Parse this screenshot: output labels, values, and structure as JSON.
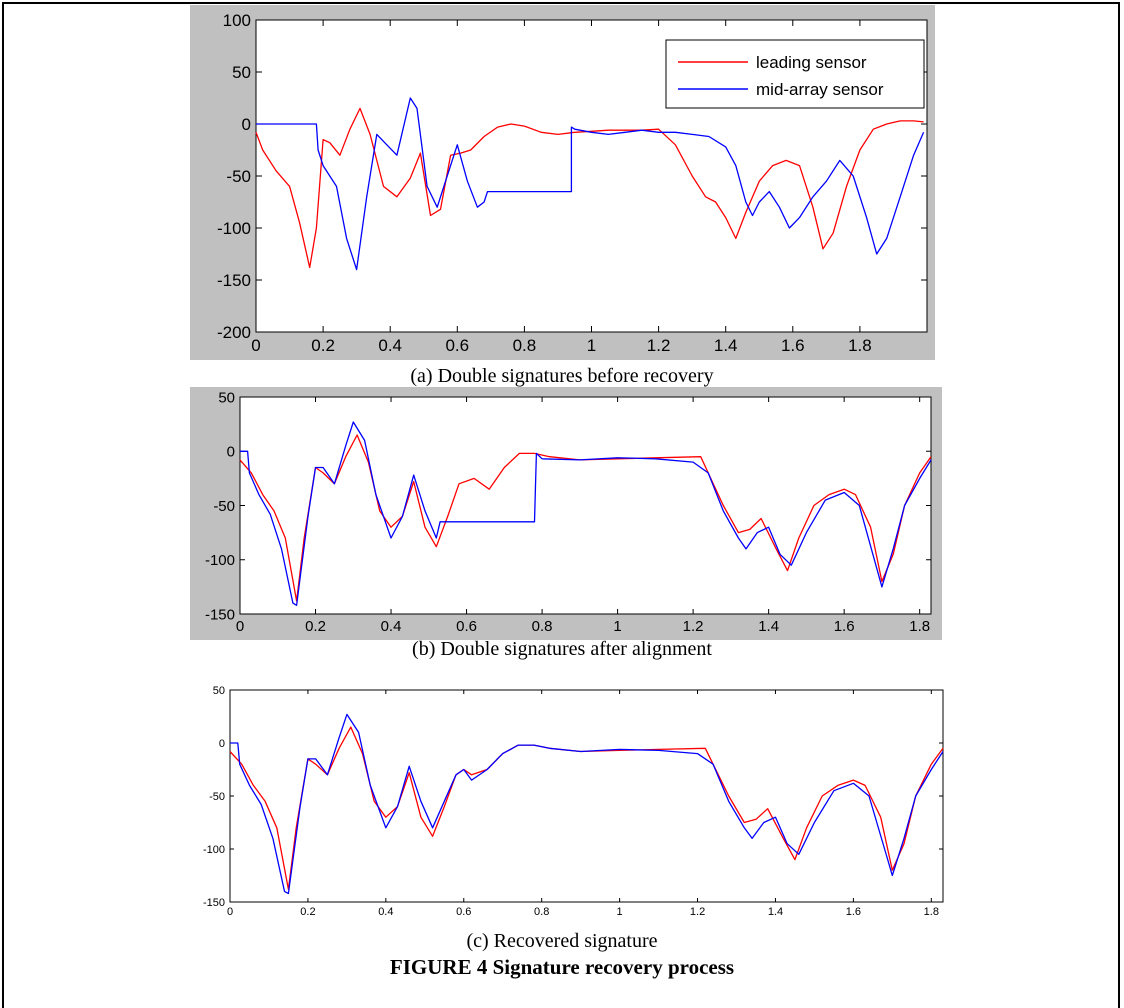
{
  "figure": {
    "captions": [
      "(a) Double signatures before recovery",
      "(b) Double signatures after alignment",
      "(c) Recovered signature"
    ],
    "title": "FIGURE 4 Signature recovery process"
  },
  "colors": {
    "leading": "#ff0000",
    "mid": "#0000ff",
    "frame": "#c0c0c0"
  },
  "chart_data": [
    {
      "type": "line",
      "legend": {
        "position": "top-right",
        "entries": [
          "leading sensor",
          "mid-array sensor"
        ]
      },
      "xlim": [
        0,
        2
      ],
      "ylim": [
        -200,
        100
      ],
      "xticks": [
        0,
        0.2,
        0.4,
        0.6,
        0.8,
        1,
        1.2,
        1.4,
        1.6,
        1.8
      ],
      "xtick_labels": [
        "0",
        "0.2",
        "0.4",
        "0.6",
        "0.8",
        "1",
        "1.2",
        "1.4",
        "1.6",
        "1.8"
      ],
      "yticks": [
        100,
        50,
        0,
        -50,
        -100,
        -150,
        -200
      ],
      "ytick_labels": [
        "100",
        "50",
        "0",
        "-50",
        "-100",
        "-150",
        "-200"
      ],
      "grid": false,
      "series": [
        {
          "name": "leading sensor",
          "color": "#ff0000",
          "x": [
            0,
            0.02,
            0.06,
            0.1,
            0.13,
            0.16,
            0.18,
            0.2,
            0.22,
            0.25,
            0.28,
            0.31,
            0.34,
            0.38,
            0.42,
            0.46,
            0.49,
            0.52,
            0.55,
            0.58,
            0.61,
            0.64,
            0.68,
            0.72,
            0.76,
            0.8,
            0.85,
            0.9,
            0.95,
            1.0,
            1.05,
            1.1,
            1.15,
            1.2,
            1.25,
            1.3,
            1.34,
            1.37,
            1.4,
            1.43,
            1.46,
            1.5,
            1.54,
            1.58,
            1.62,
            1.66,
            1.69,
            1.72,
            1.76,
            1.8,
            1.84,
            1.88,
            1.92,
            1.96,
            1.99
          ],
          "y": [
            -8,
            -25,
            -45,
            -60,
            -95,
            -138,
            -100,
            -15,
            -18,
            -30,
            -5,
            15,
            -10,
            -60,
            -70,
            -52,
            -28,
            -88,
            -82,
            -30,
            -28,
            -25,
            -12,
            -3,
            0,
            -2,
            -8,
            -10,
            -8,
            -7,
            -6,
            -6,
            -6,
            -5,
            -20,
            -50,
            -70,
            -75,
            -90,
            -110,
            -85,
            -55,
            -40,
            -35,
            -40,
            -80,
            -120,
            -105,
            -60,
            -25,
            -5,
            0,
            3,
            3,
            2
          ]
        },
        {
          "name": "mid-array sensor",
          "color": "#0000ff",
          "x": [
            0,
            0.18,
            0.185,
            0.2,
            0.24,
            0.27,
            0.3,
            0.33,
            0.36,
            0.39,
            0.42,
            0.46,
            0.48,
            0.51,
            0.54,
            0.57,
            0.6,
            0.63,
            0.66,
            0.68,
            0.69,
            0.94,
            0.94,
            0.95,
            1.0,
            1.05,
            1.1,
            1.15,
            1.2,
            1.25,
            1.3,
            1.35,
            1.4,
            1.43,
            1.46,
            1.48,
            1.5,
            1.53,
            1.56,
            1.59,
            1.62,
            1.66,
            1.7,
            1.74,
            1.78,
            1.82,
            1.85,
            1.88,
            1.92,
            1.96,
            1.99
          ],
          "y": [
            0,
            0,
            -25,
            -40,
            -60,
            -110,
            -140,
            -70,
            -10,
            -20,
            -30,
            25,
            15,
            -60,
            -80,
            -50,
            -20,
            -55,
            -80,
            -75,
            -65,
            -65,
            -3,
            -5,
            -8,
            -10,
            -8,
            -6,
            -8,
            -8,
            -10,
            -12,
            -22,
            -40,
            -75,
            -88,
            -75,
            -65,
            -80,
            -100,
            -90,
            -70,
            -55,
            -35,
            -50,
            -90,
            -125,
            -110,
            -70,
            -30,
            -8
          ]
        }
      ]
    },
    {
      "type": "line",
      "xlim": [
        0,
        1.83
      ],
      "ylim": [
        -150,
        50
      ],
      "xticks": [
        0,
        0.2,
        0.4,
        0.6,
        0.8,
        1,
        1.2,
        1.4,
        1.6,
        1.8
      ],
      "xtick_labels": [
        "0",
        "0.2",
        "0.4",
        "0.6",
        "0.8",
        "1",
        "1.2",
        "1.4",
        "1.6",
        "1.8"
      ],
      "yticks": [
        50,
        0,
        -50,
        -100,
        -150
      ],
      "ytick_labels": [
        "50",
        "0",
        "-50",
        "-100",
        "-150"
      ],
      "grid": false,
      "series": [
        {
          "color": "#ff0000",
          "x": [
            0,
            0.03,
            0.06,
            0.09,
            0.12,
            0.15,
            0.17,
            0.2,
            0.22,
            0.25,
            0.28,
            0.31,
            0.34,
            0.37,
            0.4,
            0.43,
            0.46,
            0.49,
            0.52,
            0.55,
            0.58,
            0.62,
            0.66,
            0.7,
            0.74,
            0.78,
            0.82,
            0.9,
            1.0,
            1.1,
            1.22,
            1.24,
            1.28,
            1.32,
            1.35,
            1.38,
            1.42,
            1.45,
            1.48,
            1.52,
            1.56,
            1.6,
            1.63,
            1.67,
            1.7,
            1.73,
            1.76,
            1.8,
            1.83
          ],
          "y": [
            -8,
            -20,
            -40,
            -55,
            -80,
            -138,
            -80,
            -15,
            -20,
            -30,
            -5,
            15,
            -10,
            -55,
            -70,
            -60,
            -28,
            -70,
            -88,
            -60,
            -30,
            -25,
            -35,
            -15,
            -2,
            -2,
            -5,
            -8,
            -7,
            -6,
            -5,
            -20,
            -50,
            -75,
            -72,
            -62,
            -90,
            -110,
            -80,
            -50,
            -40,
            -35,
            -40,
            -70,
            -120,
            -95,
            -50,
            -20,
            -5
          ]
        },
        {
          "color": "#0000ff",
          "x": [
            0,
            0.02,
            0.025,
            0.05,
            0.08,
            0.11,
            0.14,
            0.15,
            0.18,
            0.2,
            0.22,
            0.25,
            0.28,
            0.3,
            0.33,
            0.36,
            0.4,
            0.43,
            0.46,
            0.49,
            0.52,
            0.53,
            0.78,
            0.785,
            0.8,
            0.9,
            1.0,
            1.1,
            1.2,
            1.24,
            1.28,
            1.32,
            1.34,
            1.37,
            1.4,
            1.43,
            1.46,
            1.5,
            1.55,
            1.6,
            1.64,
            1.68,
            1.7,
            1.73,
            1.76,
            1.8,
            1.83
          ],
          "y": [
            0,
            0,
            -20,
            -40,
            -58,
            -90,
            -140,
            -142,
            -60,
            -15,
            -15,
            -30,
            5,
            27,
            10,
            -40,
            -80,
            -60,
            -22,
            -55,
            -80,
            -65,
            -65,
            -2,
            -7,
            -8,
            -6,
            -7,
            -10,
            -20,
            -55,
            -80,
            -90,
            -75,
            -70,
            -95,
            -105,
            -75,
            -45,
            -38,
            -50,
            -100,
            -125,
            -90,
            -50,
            -25,
            -8
          ]
        }
      ]
    },
    {
      "type": "line",
      "xlim": [
        0,
        1.83
      ],
      "ylim": [
        -150,
        50
      ],
      "xticks": [
        0,
        0.2,
        0.4,
        0.6,
        0.8,
        1,
        1.2,
        1.4,
        1.6,
        1.8
      ],
      "xtick_labels": [
        "0",
        "0.2",
        "0.4",
        "0.6",
        "0.8",
        "1",
        "1.2",
        "1.4",
        "1.6",
        "1.8"
      ],
      "yticks": [
        50,
        0,
        -50,
        -100,
        -150
      ],
      "ytick_labels": [
        "50",
        "0",
        "-50",
        "-100",
        "-150"
      ],
      "grid": false,
      "series": [
        {
          "color": "#ff0000",
          "x": [
            0,
            0.03,
            0.06,
            0.09,
            0.12,
            0.15,
            0.17,
            0.2,
            0.22,
            0.25,
            0.28,
            0.31,
            0.34,
            0.37,
            0.4,
            0.43,
            0.46,
            0.49,
            0.52,
            0.55,
            0.58,
            0.6,
            0.62,
            0.66,
            0.7,
            0.74,
            0.78,
            0.82,
            0.9,
            1.0,
            1.1,
            1.22,
            1.24,
            1.28,
            1.32,
            1.35,
            1.38,
            1.42,
            1.45,
            1.48,
            1.52,
            1.56,
            1.6,
            1.63,
            1.67,
            1.7,
            1.73,
            1.76,
            1.8,
            1.83
          ],
          "y": [
            -8,
            -20,
            -40,
            -55,
            -80,
            -138,
            -80,
            -15,
            -20,
            -30,
            -5,
            15,
            -10,
            -55,
            -70,
            -60,
            -28,
            -70,
            -88,
            -60,
            -30,
            -25,
            -30,
            -25,
            -10,
            -2,
            -2,
            -5,
            -8,
            -7,
            -6,
            -5,
            -20,
            -50,
            -75,
            -72,
            -62,
            -90,
            -110,
            -80,
            -50,
            -40,
            -35,
            -40,
            -70,
            -120,
            -95,
            -50,
            -20,
            -5
          ]
        },
        {
          "color": "#0000ff",
          "x": [
            0,
            0.02,
            0.025,
            0.05,
            0.08,
            0.11,
            0.14,
            0.15,
            0.18,
            0.2,
            0.22,
            0.25,
            0.28,
            0.3,
            0.33,
            0.36,
            0.4,
            0.43,
            0.46,
            0.49,
            0.52,
            0.55,
            0.58,
            0.6,
            0.62,
            0.66,
            0.7,
            0.74,
            0.78,
            0.82,
            0.9,
            1.0,
            1.1,
            1.2,
            1.24,
            1.28,
            1.32,
            1.34,
            1.37,
            1.4,
            1.43,
            1.46,
            1.5,
            1.55,
            1.6,
            1.64,
            1.68,
            1.7,
            1.73,
            1.76,
            1.8,
            1.83
          ],
          "y": [
            0,
            0,
            -20,
            -40,
            -58,
            -90,
            -140,
            -142,
            -60,
            -15,
            -15,
            -30,
            5,
            27,
            10,
            -40,
            -80,
            -60,
            -22,
            -55,
            -80,
            -55,
            -30,
            -25,
            -35,
            -25,
            -10,
            -2,
            -2,
            -5,
            -8,
            -6,
            -7,
            -10,
            -20,
            -55,
            -80,
            -90,
            -75,
            -70,
            -95,
            -105,
            -75,
            -45,
            -38,
            -50,
            -100,
            -125,
            -90,
            -50,
            -25,
            -8
          ]
        }
      ]
    }
  ]
}
